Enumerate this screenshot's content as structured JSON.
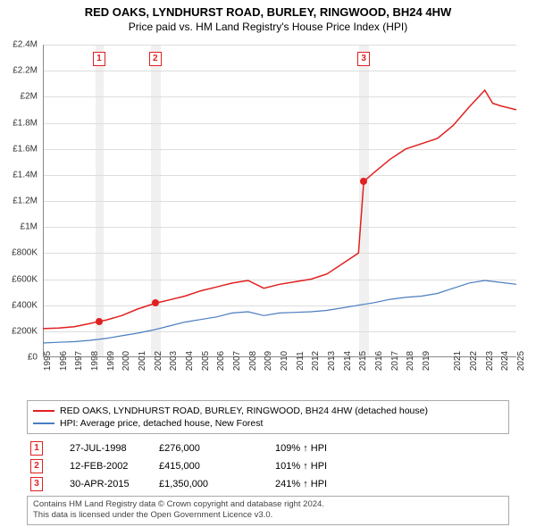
{
  "title": "RED OAKS, LYNDHURST ROAD, BURLEY, RINGWOOD, BH24 4HW",
  "subtitle": "Price paid vs. HM Land Registry's House Price Index (HPI)",
  "chart": {
    "type": "line",
    "xlim": [
      1995,
      2025
    ],
    "ylim": [
      0,
      2400000
    ],
    "ytick_step": 200000,
    "ylabels": [
      "£0",
      "£200K",
      "£400K",
      "£600K",
      "£800K",
      "£1M",
      "£1.2M",
      "£1.4M",
      "£1.6M",
      "£1.8M",
      "£2M",
      "£2.2M",
      "£2.4M"
    ],
    "xticks": [
      1995,
      1996,
      1997,
      1998,
      1999,
      2000,
      2001,
      2002,
      2003,
      2004,
      2005,
      2006,
      2007,
      2008,
      2009,
      2010,
      2011,
      2012,
      2013,
      2014,
      2015,
      2016,
      2017,
      2018,
      2019,
      2021,
      2022,
      2023,
      2024,
      2025
    ],
    "background_color": "#ffffff",
    "grid_color": "#dddddd",
    "axis_color": "#888888",
    "vbands": [
      {
        "from": 1998.3,
        "to": 1998.8,
        "color": "#f0f0f0"
      },
      {
        "from": 2001.8,
        "to": 2002.4,
        "color": "#f0f0f0"
      },
      {
        "from": 2015.0,
        "to": 2015.6,
        "color": "#f0f0f0"
      }
    ],
    "series": [
      {
        "name": "property",
        "label": "RED OAKS, LYNDHURST ROAD, BURLEY, RINGWOOD, BH24 4HW (detached house)",
        "color": "#e12020",
        "linewidth": 1.5,
        "data": [
          [
            1995,
            220000
          ],
          [
            1996,
            225000
          ],
          [
            1997,
            235000
          ],
          [
            1998,
            260000
          ],
          [
            1998.56,
            276000
          ],
          [
            1999,
            285000
          ],
          [
            2000,
            320000
          ],
          [
            2001,
            370000
          ],
          [
            2002.12,
            415000
          ],
          [
            2003,
            440000
          ],
          [
            2004,
            470000
          ],
          [
            2005,
            510000
          ],
          [
            2006,
            540000
          ],
          [
            2007,
            570000
          ],
          [
            2008,
            590000
          ],
          [
            2009,
            530000
          ],
          [
            2010,
            560000
          ],
          [
            2011,
            580000
          ],
          [
            2012,
            600000
          ],
          [
            2013,
            640000
          ],
          [
            2014,
            720000
          ],
          [
            2015,
            800000
          ],
          [
            2015.33,
            1350000
          ],
          [
            2016,
            1420000
          ],
          [
            2017,
            1520000
          ],
          [
            2018,
            1600000
          ],
          [
            2019,
            1640000
          ],
          [
            2020,
            1680000
          ],
          [
            2021,
            1780000
          ],
          [
            2022,
            1920000
          ],
          [
            2023,
            2050000
          ],
          [
            2023.5,
            1950000
          ],
          [
            2024,
            1930000
          ],
          [
            2025,
            1900000
          ]
        ]
      },
      {
        "name": "hpi",
        "label": "HPI: Average price, detached house, New Forest",
        "color": "#4a7dc0",
        "linewidth": 1.2,
        "data": [
          [
            1995,
            110000
          ],
          [
            1996,
            115000
          ],
          [
            1997,
            120000
          ],
          [
            1998,
            130000
          ],
          [
            1999,
            145000
          ],
          [
            2000,
            165000
          ],
          [
            2001,
            185000
          ],
          [
            2002,
            210000
          ],
          [
            2003,
            240000
          ],
          [
            2004,
            270000
          ],
          [
            2005,
            290000
          ],
          [
            2006,
            310000
          ],
          [
            2007,
            340000
          ],
          [
            2008,
            350000
          ],
          [
            2009,
            320000
          ],
          [
            2010,
            340000
          ],
          [
            2011,
            345000
          ],
          [
            2012,
            350000
          ],
          [
            2013,
            360000
          ],
          [
            2014,
            380000
          ],
          [
            2015,
            400000
          ],
          [
            2016,
            420000
          ],
          [
            2017,
            445000
          ],
          [
            2018,
            460000
          ],
          [
            2019,
            470000
          ],
          [
            2020,
            490000
          ],
          [
            2021,
            530000
          ],
          [
            2022,
            570000
          ],
          [
            2023,
            590000
          ],
          [
            2024,
            575000
          ],
          [
            2025,
            560000
          ]
        ]
      }
    ],
    "points": [
      {
        "x": 1998.56,
        "y": 276000,
        "color": "#e12020"
      },
      {
        "x": 2002.12,
        "y": 415000,
        "color": "#e12020"
      },
      {
        "x": 2015.33,
        "y": 1350000,
        "color": "#e12020"
      }
    ],
    "markers": [
      {
        "n": "1",
        "x": 1998.56,
        "color": "#e12020"
      },
      {
        "n": "2",
        "x": 2002.12,
        "color": "#e12020"
      },
      {
        "n": "3",
        "x": 2015.33,
        "color": "#e12020"
      }
    ]
  },
  "legend": {
    "items": [
      {
        "color": "#e12020",
        "label": "RED OAKS, LYNDHURST ROAD, BURLEY, RINGWOOD, BH24 4HW (detached house)"
      },
      {
        "color": "#4a7dc0",
        "label": "HPI: Average price, detached house, New Forest"
      }
    ]
  },
  "events": [
    {
      "n": "1",
      "color": "#e12020",
      "date": "27-JUL-1998",
      "price": "£276,000",
      "pct": "109%",
      "direction": "↑",
      "suffix": "HPI"
    },
    {
      "n": "2",
      "color": "#e12020",
      "date": "12-FEB-2002",
      "price": "£415,000",
      "pct": "101%",
      "direction": "↑",
      "suffix": "HPI"
    },
    {
      "n": "3",
      "color": "#e12020",
      "date": "30-APR-2015",
      "price": "£1,350,000",
      "pct": "241%",
      "direction": "↑",
      "suffix": "HPI"
    }
  ],
  "footnote_line1": "Contains HM Land Registry data © Crown copyright and database right 2024.",
  "footnote_line2": "This data is licensed under the Open Government Licence v3.0."
}
